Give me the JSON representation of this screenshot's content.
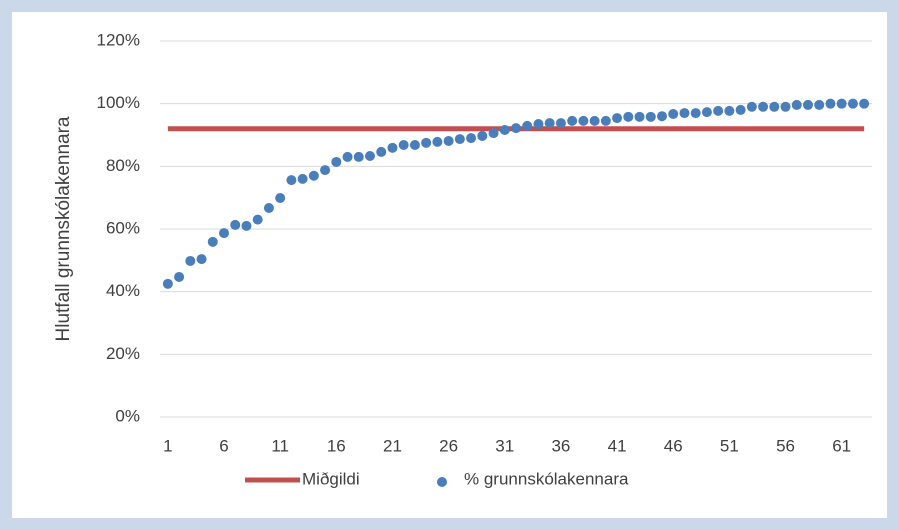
{
  "chart_data": {
    "type": "scatter",
    "y_label": "Hlutfall grunnskólakennara",
    "x": [
      1,
      2,
      3,
      4,
      5,
      6,
      7,
      8,
      9,
      10,
      11,
      12,
      13,
      14,
      15,
      16,
      17,
      18,
      19,
      20,
      21,
      22,
      23,
      24,
      25,
      26,
      27,
      28,
      29,
      30,
      31,
      32,
      33,
      34,
      35,
      36,
      37,
      38,
      39,
      40,
      41,
      42,
      43,
      44,
      45,
      46,
      47,
      48,
      49,
      50,
      51,
      52,
      53,
      54,
      55,
      56,
      57,
      58,
      59,
      60,
      61,
      62,
      63
    ],
    "series": [
      {
        "name": "% grunnskólakennara",
        "color": "#4a7ebb",
        "values": [
          42.5,
          44.7,
          49.8,
          50.4,
          55.9,
          58.7,
          61.3,
          61,
          63,
          66.7,
          69.9,
          75.6,
          76,
          77,
          78.8,
          81.4,
          83,
          83,
          83.3,
          84.6,
          85.9,
          86.8,
          86.8,
          87.5,
          87.8,
          88.1,
          88.7,
          89,
          89.7,
          90.6,
          91.6,
          92.2,
          92.9,
          93.5,
          93.8,
          93.8,
          94.5,
          94.5,
          94.5,
          94.5,
          95.4,
          95.8,
          95.8,
          95.8,
          96,
          96.7,
          97,
          97,
          97.3,
          97.7,
          97.7,
          98,
          99,
          99,
          99,
          99,
          99.6,
          99.6,
          99.6,
          100,
          100,
          100,
          100
        ]
      }
    ],
    "median": {
      "name": "Miðgildi",
      "color": "#c0504d",
      "value": 92
    },
    "xlim": [
      0.3,
      63.7
    ],
    "xticks": [
      1,
      6,
      11,
      16,
      21,
      26,
      31,
      36,
      41,
      46,
      51,
      56,
      61
    ],
    "ylim": [
      0,
      120
    ],
    "yticks": [
      {
        "value": 0,
        "label": "0%"
      },
      {
        "value": 20,
        "label": "20%"
      },
      {
        "value": 40,
        "label": "40%"
      },
      {
        "value": 60,
        "label": "60%"
      },
      {
        "value": 80,
        "label": "80%"
      },
      {
        "value": 100,
        "label": "100%"
      },
      {
        "value": 120,
        "label": "120%"
      }
    ],
    "grid": true
  }
}
